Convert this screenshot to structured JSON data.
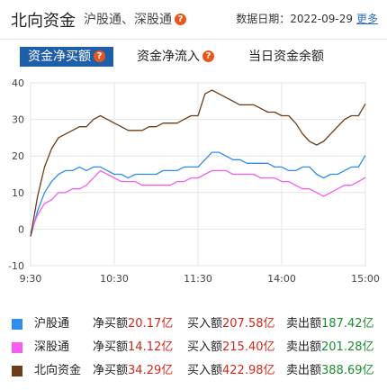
{
  "header": {
    "title": "北向资金",
    "subtitle": "沪股通、深股通",
    "date_label": "数据日期：",
    "date": "2022-09-29",
    "more": "更多"
  },
  "tabs": [
    {
      "label": "资金净买额",
      "active": true
    },
    {
      "label": "资金净流入",
      "active": false
    },
    {
      "label": "当日资金余额",
      "active": false
    }
  ],
  "colors": {
    "hgt": "#2f8cf0",
    "sgt": "#f55df0",
    "north": "#6b3d16",
    "tab_active": "#1f5ea8",
    "help_icon": "#e9541f"
  },
  "chart_data": {
    "type": "line",
    "title": "",
    "xlabel": "",
    "ylabel": "",
    "ylim": [
      -10,
      40
    ],
    "y_ticks": [
      -10,
      0,
      10,
      20,
      30,
      40
    ],
    "x_ticks": [
      "9:30",
      "10:30",
      "11:30",
      "14:00",
      "15:00"
    ],
    "grid": true,
    "series": [
      {
        "name": "沪股通",
        "x": [
          "9:30",
          "9:35",
          "9:40",
          "9:45",
          "9:50",
          "9:55",
          "10:00",
          "10:05",
          "10:10",
          "10:15",
          "10:20",
          "10:25",
          "10:30",
          "10:35",
          "10:40",
          "10:45",
          "10:50",
          "10:55",
          "11:00",
          "11:05",
          "11:10",
          "11:15",
          "11:20",
          "11:25",
          "11:30",
          "13:05",
          "13:10",
          "13:15",
          "13:20",
          "13:25",
          "13:30",
          "13:35",
          "13:40",
          "13:45",
          "13:50",
          "13:55",
          "14:00",
          "14:05",
          "14:10",
          "14:15",
          "14:20",
          "14:25",
          "14:30",
          "14:35",
          "14:40",
          "14:45",
          "14:50",
          "14:55",
          "15:00"
        ],
        "values": [
          -2,
          5,
          10,
          13,
          15,
          16,
          16,
          17,
          16,
          17,
          17,
          16,
          15,
          15,
          14,
          15,
          15,
          15,
          15,
          16,
          16,
          16,
          17,
          17,
          17,
          19,
          21,
          21,
          20,
          19,
          19,
          18,
          18,
          18,
          18,
          17,
          17,
          16,
          16,
          17,
          17,
          15,
          14,
          15,
          15,
          16,
          17,
          17,
          20.17
        ]
      },
      {
        "name": "深股通",
        "x": [
          "9:30",
          "9:35",
          "9:40",
          "9:45",
          "9:50",
          "9:55",
          "10:00",
          "10:05",
          "10:10",
          "10:15",
          "10:20",
          "10:25",
          "10:30",
          "10:35",
          "10:40",
          "10:45",
          "10:50",
          "10:55",
          "11:00",
          "11:05",
          "11:10",
          "11:15",
          "11:20",
          "11:25",
          "11:30",
          "13:05",
          "13:10",
          "13:15",
          "13:20",
          "13:25",
          "13:30",
          "13:35",
          "13:40",
          "13:45",
          "13:50",
          "13:55",
          "14:00",
          "14:05",
          "14:10",
          "14:15",
          "14:20",
          "14:25",
          "14:30",
          "14:35",
          "14:40",
          "14:45",
          "14:50",
          "14:55",
          "15:00"
        ],
        "values": [
          -1,
          4,
          7,
          8,
          10,
          10,
          11,
          11,
          12,
          14,
          16,
          15,
          14,
          13,
          13,
          13,
          12,
          12,
          12,
          12,
          12,
          13,
          13,
          14,
          14,
          15,
          16,
          16,
          16,
          15,
          15,
          15,
          15,
          14,
          14,
          14,
          13,
          13,
          12,
          11,
          11,
          10,
          9,
          10,
          11,
          12,
          12,
          13,
          14.12
        ]
      },
      {
        "name": "北向资金",
        "x": [
          "9:30",
          "9:35",
          "9:40",
          "9:45",
          "9:50",
          "9:55",
          "10:00",
          "10:05",
          "10:10",
          "10:15",
          "10:20",
          "10:25",
          "10:30",
          "10:35",
          "10:40",
          "10:45",
          "10:50",
          "10:55",
          "11:00",
          "11:05",
          "11:10",
          "11:15",
          "11:20",
          "11:25",
          "11:30",
          "13:05",
          "13:10",
          "13:15",
          "13:20",
          "13:25",
          "13:30",
          "13:35",
          "13:40",
          "13:45",
          "13:50",
          "13:55",
          "14:00",
          "14:05",
          "14:10",
          "14:15",
          "14:20",
          "14:25",
          "14:30",
          "14:35",
          "14:40",
          "14:45",
          "14:50",
          "14:55",
          "15:00"
        ],
        "values": [
          -2,
          9,
          17,
          22,
          25,
          26,
          27,
          28,
          28,
          30,
          31,
          30,
          29,
          28,
          27,
          27,
          27,
          28,
          28,
          29,
          29,
          29,
          30,
          31,
          31,
          37,
          38,
          37,
          36,
          35,
          34,
          34,
          34,
          33,
          32,
          32,
          31,
          31,
          29,
          26,
          24,
          23,
          24,
          26,
          28,
          30,
          31,
          31,
          34.29
        ]
      }
    ]
  },
  "legend": [
    {
      "name": "沪股通",
      "net_label": "净买额",
      "net_value": "20.17亿",
      "buy_label": "买入额",
      "buy_value": "207.58亿",
      "sell_label": "卖出额",
      "sell_value": "187.42亿"
    },
    {
      "name": "深股通",
      "net_label": "净买额",
      "net_value": "14.12亿",
      "buy_label": "买入额",
      "buy_value": "215.40亿",
      "sell_label": "卖出额",
      "sell_value": "201.28亿"
    },
    {
      "name": "北向资金",
      "net_label": "净买额",
      "net_value": "34.29亿",
      "buy_label": "买入额",
      "buy_value": "422.98亿",
      "sell_label": "卖出额",
      "sell_value": "388.69亿"
    }
  ]
}
